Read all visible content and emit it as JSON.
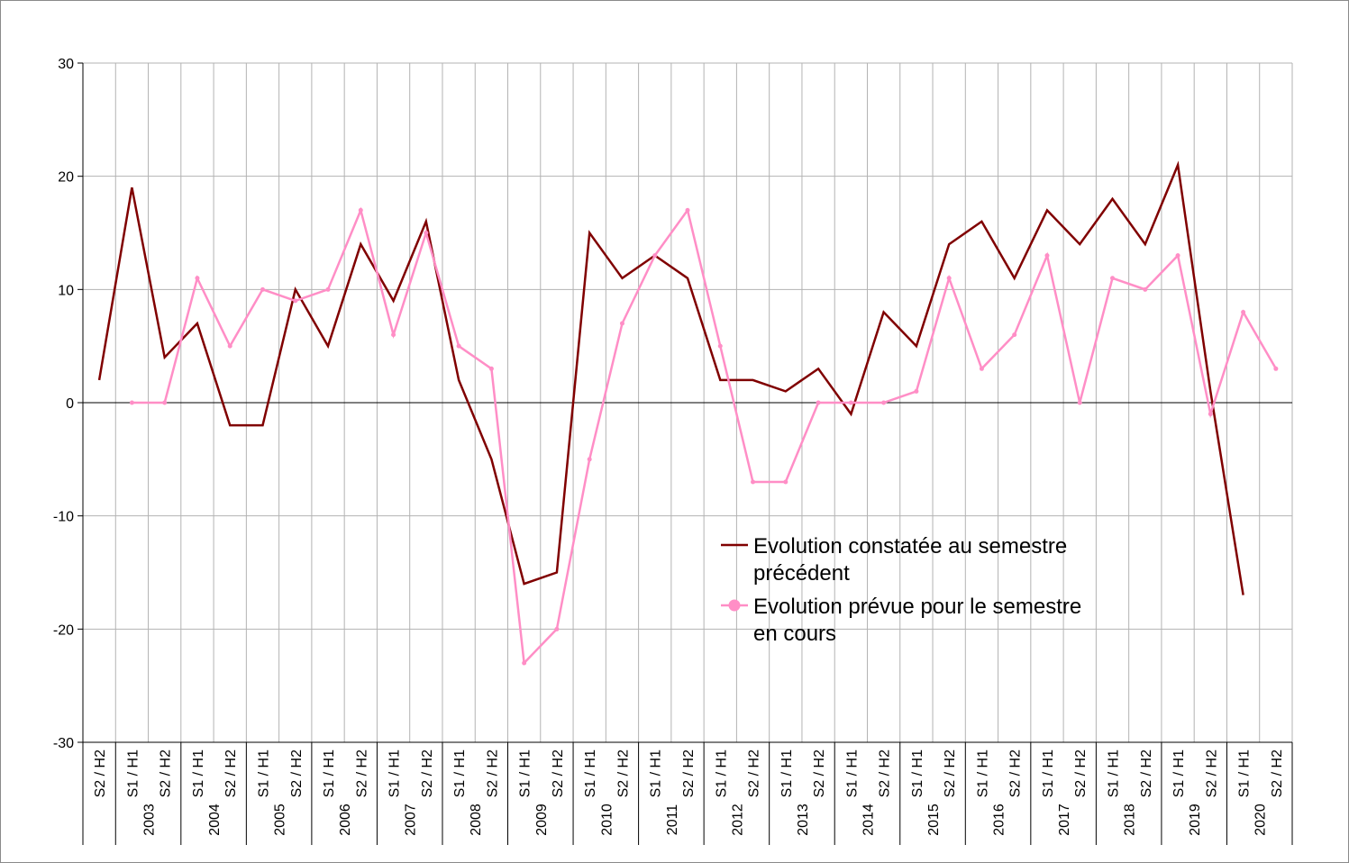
{
  "chart_data": {
    "type": "line",
    "y_ticks": [
      "30",
      "20",
      "10",
      "0",
      "-10",
      "-20",
      "-30"
    ],
    "ylim": [
      -30,
      30
    ],
    "x": [
      "S2 / H2",
      "S1 / H1",
      "S2 / H2",
      "S1 / H1",
      "S2 / H2",
      "S1 / H1",
      "S2 / H2",
      "S1 / H1",
      "S2 / H2",
      "S1 / H1",
      "S2 / H2",
      "S1 / H1",
      "S2 / H2",
      "S1 / H1",
      "S2 / H2",
      "S1 / H1",
      "S2 / H2",
      "S1 / H1",
      "S2 / H2",
      "S1 / H1",
      "S2 / H2",
      "S1 / H1",
      "S2 / H2",
      "S1 / H1",
      "S2 / H2",
      "S1 / H1",
      "S2 / H2",
      "S1 / H1",
      "S2 / H2",
      "S1 / H1",
      "S2 / H2",
      "S1 / H1",
      "S2 / H2",
      "S1 / H1",
      "S2 / H2",
      "S1 / H1",
      "S2 / H2"
    ],
    "years": [
      "2003",
      "2004",
      "2005",
      "2006",
      "2007",
      "2008",
      "2009",
      "2010",
      "2011",
      "2012",
      "2013",
      "2014",
      "2015",
      "2016",
      "2017",
      "2018",
      "2019",
      "2020"
    ],
    "grid": true,
    "legend_position": "center-right",
    "series": [
      {
        "name": "Evolution constatée au semestre précédent",
        "name_lines": [
          "Evolution constatée au semestre",
          "précédent"
        ],
        "color": "#800000",
        "markers": false,
        "values": [
          2,
          19,
          4,
          7,
          -2,
          -2,
          10,
          5,
          14,
          9,
          16,
          2,
          -5,
          -16,
          -15,
          15,
          11,
          13,
          11,
          2,
          2,
          1,
          3,
          -1,
          8,
          5,
          14,
          16,
          11,
          17,
          14,
          18,
          14,
          21,
          1,
          -17,
          null
        ]
      },
      {
        "name": "Evolution prévue pour le semestre en cours",
        "name_lines": [
          "Evolution prévue pour le semestre",
          "en cours"
        ],
        "color": "#ff8ec6",
        "markers": true,
        "values": [
          null,
          0,
          0,
          11,
          5,
          10,
          9,
          10,
          17,
          6,
          15,
          5,
          3,
          -23,
          -20,
          -5,
          7,
          13,
          17,
          5,
          -7,
          -7,
          0,
          0,
          0,
          1,
          11,
          3,
          6,
          13,
          0,
          11,
          10,
          13,
          -1,
          8,
          3
        ]
      }
    ]
  }
}
